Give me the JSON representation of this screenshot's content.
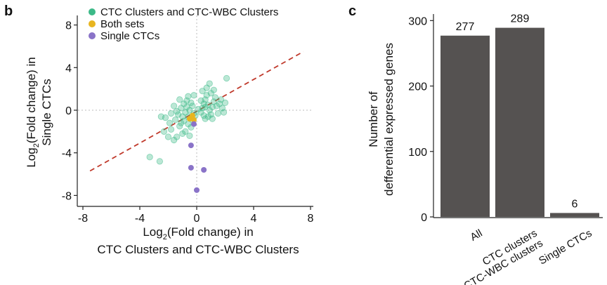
{
  "panels": {
    "b_label": "b",
    "c_label": "c"
  },
  "chart_data": [
    {
      "type": "scatter",
      "panel": "b",
      "xlabel_line1_pre": "Log",
      "xlabel_line1_sub": "2",
      "xlabel_line1_post": "(Fold change) in",
      "xlabel_line2": "CTC Clusters and CTC-WBC Clusters",
      "ylabel_line1_pre": "Log",
      "ylabel_line1_sub": "2",
      "ylabel_line1_post": "(Fold change) in",
      "ylabel_line2": "Single CTCs",
      "xlim": [
        -8,
        8
      ],
      "ylim": [
        -8.5,
        8.5
      ],
      "xticks": [
        -8,
        -4,
        0,
        4,
        8
      ],
      "yticks": [
        -8,
        -4,
        0,
        4,
        8
      ],
      "xtick_labels": [
        "-8",
        "-4",
        "0",
        "4",
        "8"
      ],
      "ytick_labels": [
        "-8",
        "-4",
        "0",
        "4",
        "8"
      ],
      "legend_position": "top-left",
      "reference_line": {
        "x1": -7.5,
        "y1": -5.7,
        "x2": 7.5,
        "y2": 5.5,
        "color": "#c0392b",
        "style": "dashed"
      },
      "series": [
        {
          "name": "CTC Clusters and CTC-WBC Clusters",
          "color": "#3cb988",
          "points": [
            [
              -3.3,
              -4.4
            ],
            [
              -2.6,
              -4.8
            ],
            [
              -2.3,
              -2.0
            ],
            [
              -2.0,
              -2.5
            ],
            [
              -1.8,
              -1.8
            ],
            [
              -1.9,
              -1.2
            ],
            [
              -2.2,
              -0.7
            ],
            [
              -2.5,
              -0.6
            ],
            [
              -1.6,
              -2.8
            ],
            [
              -1.4,
              -2.5
            ],
            [
              -1.2,
              -1.5
            ],
            [
              -1.0,
              -2.2
            ],
            [
              -0.8,
              -2.0
            ],
            [
              -1.5,
              -0.9
            ],
            [
              -1.3,
              -0.4
            ],
            [
              -1.1,
              0.2
            ],
            [
              -0.9,
              0.6
            ],
            [
              -0.7,
              0.9
            ],
            [
              -1.6,
              0.4
            ],
            [
              -1.2,
              1.0
            ],
            [
              -0.6,
              1.3
            ],
            [
              -0.8,
              -0.2
            ],
            [
              -0.6,
              -0.6
            ],
            [
              -0.5,
              0.0
            ],
            [
              -0.9,
              -1.0
            ],
            [
              -0.4,
              -1.6
            ],
            [
              -0.3,
              -0.9
            ],
            [
              -0.5,
              -2.4
            ],
            [
              -0.3,
              0.4
            ],
            [
              -0.2,
              -0.3
            ],
            [
              -1.4,
              -0.1
            ],
            [
              -1.0,
              -0.6
            ],
            [
              -0.7,
              0.3
            ],
            [
              -0.4,
              0.7
            ],
            [
              -0.2,
              1.4
            ],
            [
              -1.8,
              -0.3
            ],
            [
              0.3,
              -0.2
            ],
            [
              0.4,
              0.2
            ],
            [
              0.5,
              0.6
            ],
            [
              0.6,
              1.0
            ],
            [
              0.7,
              1.4
            ],
            [
              0.8,
              0.5
            ],
            [
              0.9,
              0.0
            ],
            [
              1.0,
              -0.4
            ],
            [
              1.1,
              0.3
            ],
            [
              1.2,
              0.8
            ],
            [
              1.3,
              1.2
            ],
            [
              0.5,
              -0.5
            ],
            [
              0.6,
              -0.8
            ],
            [
              0.8,
              -0.6
            ],
            [
              1.0,
              1.6
            ],
            [
              1.2,
              1.9
            ],
            [
              0.7,
              2.1
            ],
            [
              0.9,
              2.5
            ],
            [
              0.4,
              1.8
            ],
            [
              1.4,
              0.4
            ],
            [
              1.5,
              -0.3
            ],
            [
              1.6,
              0.6
            ],
            [
              1.8,
              0.2
            ],
            [
              2.0,
              0.7
            ],
            [
              2.1,
              3.0
            ],
            [
              1.7,
              1.0
            ],
            [
              1.9,
              -0.2
            ],
            [
              0.3,
              0.9
            ],
            [
              0.6,
              0.3
            ],
            [
              1.1,
              -0.8
            ],
            [
              -0.1,
              -0.5
            ],
            [
              0.1,
              0.1
            ],
            [
              -1.1,
              -1.2
            ],
            [
              -0.6,
              -1.3
            ]
          ]
        },
        {
          "name": "Both sets",
          "color": "#e8b520",
          "points": [
            [
              -0.5,
              -0.8
            ],
            [
              -0.3,
              -0.5
            ],
            [
              -0.2,
              -0.9
            ]
          ]
        },
        {
          "name": "Single CTCs",
          "color": "#8a73c8",
          "points": [
            [
              -0.2,
              -1.3
            ],
            [
              -0.4,
              -3.3
            ],
            [
              -0.4,
              -5.4
            ],
            [
              0.5,
              -5.6
            ],
            [
              0.0,
              -7.5
            ]
          ]
        }
      ]
    },
    {
      "type": "bar",
      "panel": "c",
      "ylabel_line1": "Number of",
      "ylabel_line2": "defferential expressed genes",
      "categories": [
        "All",
        "CTC clusters\nCTC-WBC clusters",
        "Single CTCs"
      ],
      "category_lines": [
        [
          "All"
        ],
        [
          "CTC clusters",
          "CTC-WBC clusters"
        ],
        [
          "Single CTCs"
        ]
      ],
      "values": [
        277,
        289,
        6
      ],
      "value_labels": [
        "277",
        "289",
        "6"
      ],
      "bar_color": "#555251",
      "ylim": [
        0,
        310
      ],
      "yticks": [
        0,
        100,
        200,
        300
      ],
      "ytick_labels": [
        "0",
        "100",
        "200",
        "300"
      ]
    }
  ]
}
